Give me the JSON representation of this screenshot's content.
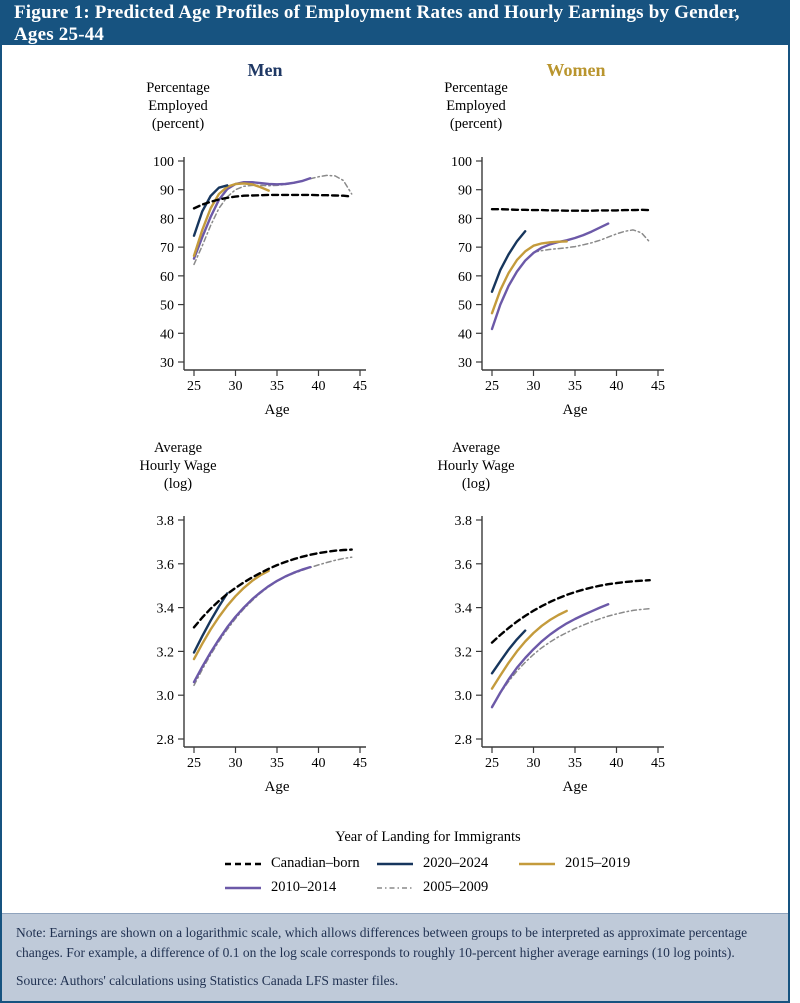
{
  "figure_title": "Figure 1: Predicted Age Profiles of Employment Rates and Hourly Earnings by Gender, Ages 25-44",
  "column_headers": {
    "men": "Men",
    "women": "Women"
  },
  "colors": {
    "title_bar": "#175380",
    "border": "#175380",
    "men_header": "#1F3864",
    "women_header": "#B9952E",
    "note_bg": "#BFCAD9",
    "note_text": "#1F3050",
    "axis": "#3a3a3a",
    "canadian_born": "#000000",
    "landing_2020_2024": "#17365D",
    "landing_2015_2019": "#C49B3C",
    "landing_2010_2014": "#6C59A8",
    "landing_2005_2009": "#8a8a8a"
  },
  "styles": {
    "canadian_born": {
      "color": "#000000",
      "width": 2.4,
      "dash": [
        6,
        4
      ]
    },
    "y2020_2024": {
      "color": "#17365D",
      "width": 2.4
    },
    "y2015_2019": {
      "color": "#C49B3C",
      "width": 2.4
    },
    "y2010_2014": {
      "color": "#6C59A8",
      "width": 2.4
    },
    "y2005_2009": {
      "color": "#8a8a8a",
      "width": 1.5,
      "dash": [
        5,
        3,
        1.5,
        3
      ]
    }
  },
  "legend": {
    "title": "Year of Landing for Immigrants",
    "rows": [
      [
        {
          "label": "Canadian–born",
          "style": "canadian_born"
        },
        {
          "label": "2020–2024",
          "style": "y2020_2024"
        },
        {
          "label": "2015–2019",
          "style": "y2015_2019"
        }
      ],
      [
        {
          "label": "2010–2014",
          "style": "y2010_2014"
        },
        {
          "label": "2005–2009",
          "style": "y2005_2009"
        }
      ]
    ]
  },
  "notes": {
    "note": "Note: Earnings are shown on a logarithmic scale, which allows differences between groups to be interpreted as approximate percentage changes. For example, a difference of 0.1 on the log scale corresponds to roughly 10-percent higher average earnings (10 log points).",
    "source": "Source: Authors' calculations using Statistics Canada LFS master files."
  },
  "chart_data": [
    {
      "id": "men-employment",
      "type": "line",
      "kind": "emp",
      "column": "Men",
      "title": "Men — Percentage Employed",
      "ylabel_lines": [
        "Percentage",
        "Employed",
        "(percent)"
      ],
      "xlabel": "Age",
      "xlim": [
        25,
        45
      ],
      "ylim": [
        30,
        100
      ],
      "grid": false,
      "x_ticks": [
        25,
        30,
        35,
        40,
        45
      ],
      "y_ticks": [
        30,
        40,
        50,
        60,
        70,
        80,
        90,
        100
      ],
      "y_tick_labels": [
        "30",
        "40",
        "50",
        "60",
        "70",
        "80",
        "90",
        "100"
      ],
      "series": [
        {
          "name": "Canadian–born",
          "style": "canadian_born",
          "age_start": 25,
          "values": [
            83.5,
            84.8,
            85.8,
            86.6,
            87.2,
            87.6,
            87.9,
            88.0,
            88.1,
            88.2,
            88.2,
            88.2,
            88.2,
            88.2,
            88.2,
            88.1,
            88.1,
            88.0,
            87.9,
            87.6
          ]
        },
        {
          "name": "2020–2024",
          "style": "y2020_2024",
          "age_start": 25,
          "values": [
            74.0,
            82.5,
            87.8,
            90.7,
            91.5
          ]
        },
        {
          "name": "2015–2019",
          "style": "y2015_2019",
          "age_start": 25,
          "values": [
            67.0,
            76.0,
            83.5,
            88.5,
            91.0,
            92.0,
            92.2,
            91.9,
            90.9,
            89.7
          ]
        },
        {
          "name": "2010–2014",
          "style": "y2010_2014",
          "age_start": 25,
          "values": [
            66.0,
            73.5,
            80.5,
            86.5,
            90.2,
            92.0,
            92.6,
            92.6,
            92.3,
            92.0,
            91.9,
            92.0,
            92.4,
            93.0,
            94.0
          ]
        },
        {
          "name": "2005–2009",
          "style": "y2005_2009",
          "age_start": 25,
          "values": [
            64.0,
            70.5,
            77.5,
            83.5,
            87.5,
            90.0,
            91.2,
            91.5,
            91.5,
            91.4,
            91.5,
            91.8,
            92.3,
            93.0,
            93.8,
            94.5,
            95.0,
            94.8,
            93.2,
            88.5
          ]
        }
      ]
    },
    {
      "id": "women-employment",
      "type": "line",
      "kind": "emp",
      "column": "Women",
      "title": "Women — Percentage Employed",
      "ylabel_lines": [
        "Percentage",
        "Employed",
        "(percent)"
      ],
      "xlabel": "Age",
      "xlim": [
        25,
        45
      ],
      "ylim": [
        30,
        100
      ],
      "grid": false,
      "x_ticks": [
        25,
        30,
        35,
        40,
        45
      ],
      "y_ticks": [
        30,
        40,
        50,
        60,
        70,
        80,
        90,
        100
      ],
      "y_tick_labels": [
        "30",
        "40",
        "50",
        "60",
        "70",
        "80",
        "90",
        "100"
      ],
      "series": [
        {
          "name": "Canadian–born",
          "style": "canadian_born",
          "age_start": 25,
          "values": [
            83.2,
            83.2,
            83.1,
            83.0,
            83.0,
            82.9,
            82.9,
            82.8,
            82.8,
            82.7,
            82.7,
            82.7,
            82.7,
            82.8,
            82.8,
            82.8,
            82.9,
            82.9,
            83.0,
            82.9
          ]
        },
        {
          "name": "2020–2024",
          "style": "y2020_2024",
          "age_start": 25,
          "values": [
            54.5,
            62.0,
            67.5,
            72.0,
            75.5
          ]
        },
        {
          "name": "2015–2019",
          "style": "y2015_2019",
          "age_start": 25,
          "values": [
            47.0,
            55.0,
            61.0,
            65.5,
            68.5,
            70.5,
            71.3,
            71.7,
            71.9,
            72.0
          ]
        },
        {
          "name": "2010–2014",
          "style": "y2010_2014",
          "age_start": 25,
          "values": [
            41.5,
            50.0,
            56.5,
            61.5,
            65.3,
            68.0,
            69.8,
            71.0,
            71.8,
            72.4,
            73.2,
            74.2,
            75.4,
            76.8,
            78.2
          ]
        },
        {
          "name": "2005–2009",
          "style": "y2005_2009",
          "age_start": 30,
          "values": [
            68.2,
            68.8,
            69.2,
            69.5,
            69.8,
            70.2,
            70.8,
            71.5,
            72.4,
            73.5,
            74.6,
            75.5,
            76.0,
            75.0,
            71.8
          ]
        }
      ]
    },
    {
      "id": "men-wage",
      "type": "line",
      "kind": "wage",
      "column": "Men",
      "title": "Men — Average Hourly Wage (log)",
      "ylabel_lines": [
        "Average",
        "Hourly Wage",
        "(log)"
      ],
      "xlabel": "Age",
      "xlim": [
        25,
        45
      ],
      "ylim": [
        2.8,
        3.8
      ],
      "grid": false,
      "x_ticks": [
        25,
        30,
        35,
        40,
        45
      ],
      "y_ticks": [
        2.8,
        3.0,
        3.2,
        3.4,
        3.6,
        3.8
      ],
      "y_tick_labels": [
        "2.8",
        "3.0",
        "3.2",
        "3.4",
        "3.6",
        "3.8"
      ],
      "series": [
        {
          "name": "Canadian–born",
          "style": "canadian_born",
          "age_start": 25,
          "values": [
            3.31,
            3.355,
            3.395,
            3.43,
            3.462,
            3.49,
            3.515,
            3.538,
            3.558,
            3.577,
            3.594,
            3.608,
            3.621,
            3.632,
            3.641,
            3.649,
            3.655,
            3.66,
            3.663,
            3.665
          ]
        },
        {
          "name": "2020–2024",
          "style": "y2020_2024",
          "age_start": 25,
          "values": [
            3.195,
            3.27,
            3.34,
            3.405,
            3.465
          ]
        },
        {
          "name": "2015–2019",
          "style": "y2015_2019",
          "age_start": 25,
          "values": [
            3.165,
            3.235,
            3.3,
            3.357,
            3.408,
            3.452,
            3.49,
            3.522,
            3.548,
            3.568
          ]
        },
        {
          "name": "2010–2014",
          "style": "y2010_2014",
          "age_start": 25,
          "values": [
            3.06,
            3.13,
            3.195,
            3.255,
            3.31,
            3.358,
            3.4,
            3.438,
            3.47,
            3.498,
            3.522,
            3.542,
            3.559,
            3.573,
            3.585
          ]
        },
        {
          "name": "2005–2009",
          "style": "y2005_2009",
          "age_start": 25,
          "values": [
            3.045,
            3.118,
            3.185,
            3.246,
            3.3,
            3.35,
            3.394,
            3.432,
            3.466,
            3.495,
            3.52,
            3.54,
            3.556,
            3.57,
            3.583,
            3.595,
            3.606,
            3.616,
            3.624,
            3.63
          ]
        }
      ]
    },
    {
      "id": "women-wage",
      "type": "line",
      "kind": "wage",
      "column": "Women",
      "title": "Women — Average Hourly Wage (log)",
      "ylabel_lines": [
        "Average",
        "Hourly Wage",
        "(log)"
      ],
      "xlabel": "Age",
      "xlim": [
        25,
        45
      ],
      "ylim": [
        2.8,
        3.8
      ],
      "grid": false,
      "x_ticks": [
        25,
        30,
        35,
        40,
        45
      ],
      "y_ticks": [
        2.8,
        3.0,
        3.2,
        3.4,
        3.6,
        3.8
      ],
      "y_tick_labels": [
        "2.8",
        "3.0",
        "3.2",
        "3.4",
        "3.6",
        "3.8"
      ],
      "series": [
        {
          "name": "Canadian–born",
          "style": "canadian_born",
          "age_start": 25,
          "values": [
            3.24,
            3.275,
            3.307,
            3.336,
            3.362,
            3.386,
            3.407,
            3.426,
            3.443,
            3.458,
            3.471,
            3.482,
            3.492,
            3.5,
            3.507,
            3.512,
            3.517,
            3.52,
            3.523,
            3.525
          ]
        },
        {
          "name": "2020–2024",
          "style": "y2020_2024",
          "age_start": 25,
          "values": [
            3.1,
            3.155,
            3.208,
            3.255,
            3.295
          ]
        },
        {
          "name": "2015–2019",
          "style": "y2015_2019",
          "age_start": 25,
          "values": [
            3.03,
            3.09,
            3.148,
            3.2,
            3.245,
            3.284,
            3.317,
            3.344,
            3.366,
            3.385
          ]
        },
        {
          "name": "2010–2014",
          "style": "y2010_2014",
          "age_start": 25,
          "values": [
            2.945,
            3.012,
            3.072,
            3.125,
            3.17,
            3.21,
            3.246,
            3.277,
            3.304,
            3.328,
            3.348,
            3.366,
            3.383,
            3.4,
            3.415
          ]
        },
        {
          "name": "2005–2009",
          "style": "y2005_2009",
          "age_start": 25,
          "values": [
            2.95,
            3.01,
            3.063,
            3.11,
            3.15,
            3.186,
            3.217,
            3.243,
            3.266,
            3.286,
            3.304,
            3.32,
            3.335,
            3.349,
            3.361,
            3.371,
            3.38,
            3.387,
            3.392,
            3.395
          ]
        }
      ]
    }
  ]
}
